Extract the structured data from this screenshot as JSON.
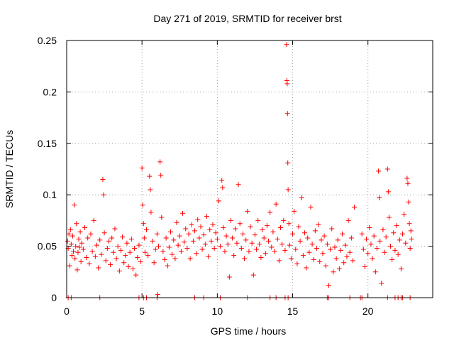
{
  "chart_data": {
    "type": "scatter",
    "title": "Day 271 of 2019, SRMTID for receiver brst",
    "xlabel": "GPS time / hours",
    "ylabel": "SRMTID / TECUs",
    "xlim": [
      0,
      24.3
    ],
    "ylim": [
      0,
      0.25
    ],
    "xticks": [
      0,
      5,
      10,
      15,
      20
    ],
    "xtick_labels": [
      "0",
      "5",
      "10",
      "15",
      "20"
    ],
    "yticks": [
      0,
      0.05,
      0.1,
      0.15,
      0.2,
      0.25
    ],
    "ytick_labels": [
      "0",
      "0.05",
      "0.1",
      "0.15",
      "0.2",
      "0.25"
    ],
    "grid": true,
    "marker": "+",
    "color": "#ff0000",
    "series": [
      {
        "name": "SRMTID",
        "points": [
          [
            0.05,
            0.055
          ],
          [
            0.1,
            0.048
          ],
          [
            0.15,
            0.062
          ],
          [
            0.2,
            0.031
          ],
          [
            0.25,
            0.066
          ],
          [
            0.3,
            0.052
          ],
          [
            0.35,
            0.041
          ],
          [
            0.4,
            0.06
          ],
          [
            0.45,
            0.045
          ],
          [
            0.5,
            0.09
          ],
          [
            0.55,
            0.038
          ],
          [
            0.6,
            0.05
          ],
          [
            0.65,
            0.072
          ],
          [
            0.7,
            0.027
          ],
          [
            0.75,
            0.044
          ],
          [
            0.8,
            0.057
          ],
          [
            0.85,
            0.049
          ],
          [
            0.9,
            0.064
          ],
          [
            0.95,
            0.035
          ],
          [
            1.0,
            0.053
          ],
          [
            1.1,
            0.047
          ],
          [
            1.2,
            0.068
          ],
          [
            1.3,
            0.039
          ],
          [
            1.4,
            0.058
          ],
          [
            1.5,
            0.033
          ],
          [
            1.6,
            0.062
          ],
          [
            1.7,
            0.045
          ],
          [
            1.8,
            0.075
          ],
          [
            1.9,
            0.04
          ],
          [
            2.0,
            0.051
          ],
          [
            2.1,
            0.029
          ],
          [
            2.2,
            0.056
          ],
          [
            2.3,
            0.042
          ],
          [
            2.4,
            0.115
          ],
          [
            2.45,
            0.1
          ],
          [
            2.5,
            0.063
          ],
          [
            2.6,
            0.036
          ],
          [
            2.7,
            0.048
          ],
          [
            2.8,
            0.055
          ],
          [
            2.9,
            0.032
          ],
          [
            3.0,
            0.058
          ],
          [
            3.1,
            0.044
          ],
          [
            3.2,
            0.067
          ],
          [
            3.3,
            0.038
          ],
          [
            3.4,
            0.05
          ],
          [
            3.5,
            0.026
          ],
          [
            3.6,
            0.046
          ],
          [
            3.7,
            0.059
          ],
          [
            3.8,
            0.034
          ],
          [
            3.9,
            0.041
          ],
          [
            4.0,
            0.053
          ],
          [
            4.1,
            0.03
          ],
          [
            4.2,
            0.044
          ],
          [
            4.3,
            0.057
          ],
          [
            4.4,
            0.028
          ],
          [
            4.5,
            0.048
          ],
          [
            4.6,
            0.022
          ],
          [
            4.7,
            0.039
          ],
          [
            4.8,
            0.051
          ],
          [
            4.9,
            0.035
          ],
          [
            5.0,
            0.126
          ],
          [
            5.05,
            0.09
          ],
          [
            5.1,
            0.072
          ],
          [
            5.15,
            0.058
          ],
          [
            5.2,
            0.044
          ],
          [
            5.3,
            0.066
          ],
          [
            5.4,
            0.041
          ],
          [
            5.5,
            0.118
          ],
          [
            5.55,
            0.105
          ],
          [
            5.6,
            0.083
          ],
          [
            5.7,
            0.055
          ],
          [
            5.8,
            0.034
          ],
          [
            5.9,
            0.047
          ],
          [
            6.0,
            0.062
          ],
          [
            6.05,
            0.003
          ],
          [
            6.1,
            0.05
          ],
          [
            6.2,
            0.132
          ],
          [
            6.25,
            0.119
          ],
          [
            6.3,
            0.078
          ],
          [
            6.4,
            0.045
          ],
          [
            6.5,
            0.037
          ],
          [
            6.6,
            0.058
          ],
          [
            6.7,
            0.031
          ],
          [
            6.8,
            0.049
          ],
          [
            6.9,
            0.064
          ],
          [
            7.0,
            0.042
          ],
          [
            7.1,
            0.056
          ],
          [
            7.2,
            0.038
          ],
          [
            7.3,
            0.073
          ],
          [
            7.4,
            0.051
          ],
          [
            7.5,
            0.06
          ],
          [
            7.6,
            0.045
          ],
          [
            7.7,
            0.082
          ],
          [
            7.8,
            0.054
          ],
          [
            7.9,
            0.067
          ],
          [
            8.0,
            0.048
          ],
          [
            8.1,
            0.062
          ],
          [
            8.2,
            0.038
          ],
          [
            8.3,
            0.071
          ],
          [
            8.4,
            0.055
          ],
          [
            8.5,
            0.065
          ],
          [
            8.6,
            0.043
          ],
          [
            8.7,
            0.076
          ],
          [
            8.8,
            0.058
          ],
          [
            8.9,
            0.069
          ],
          [
            9.0,
            0.047
          ],
          [
            9.1,
            0.061
          ],
          [
            9.2,
            0.052
          ],
          [
            9.3,
            0.079
          ],
          [
            9.4,
            0.04
          ],
          [
            9.5,
            0.066
          ],
          [
            9.6,
            0.055
          ],
          [
            9.7,
            0.071
          ],
          [
            9.8,
            0.048
          ],
          [
            9.9,
            0.063
          ],
          [
            10.0,
            0.057
          ],
          [
            10.1,
            0.094
          ],
          [
            10.2,
            0.05
          ],
          [
            10.3,
            0.114
          ],
          [
            10.35,
            0.107
          ],
          [
            10.4,
            0.068
          ],
          [
            10.5,
            0.045
          ],
          [
            10.6,
            0.06
          ],
          [
            10.7,
            0.052
          ],
          [
            10.8,
            0.02
          ],
          [
            10.9,
            0.075
          ],
          [
            11.0,
            0.058
          ],
          [
            11.1,
            0.041
          ],
          [
            11.2,
            0.067
          ],
          [
            11.3,
            0.053
          ],
          [
            11.4,
            0.11
          ],
          [
            11.5,
            0.072
          ],
          [
            11.6,
            0.048
          ],
          [
            11.7,
            0.062
          ],
          [
            11.8,
            0.038
          ],
          [
            11.9,
            0.056
          ],
          [
            12.0,
            0.084
          ],
          [
            12.1,
            0.045
          ],
          [
            12.2,
            0.069
          ],
          [
            12.3,
            0.053
          ],
          [
            12.4,
            0.022
          ],
          [
            12.5,
            0.061
          ],
          [
            12.6,
            0.047
          ],
          [
            12.7,
            0.075
          ],
          [
            12.8,
            0.052
          ],
          [
            12.9,
            0.039
          ],
          [
            13.0,
            0.066
          ],
          [
            13.1,
            0.058
          ],
          [
            13.2,
            0.043
          ],
          [
            13.3,
            0.07
          ],
          [
            13.4,
            0.055
          ],
          [
            13.5,
            0.083
          ],
          [
            13.6,
            0.049
          ],
          [
            13.7,
            0.064
          ],
          [
            13.8,
            0.045
          ],
          [
            13.9,
            0.091
          ],
          [
            14.0,
            0.057
          ],
          [
            14.1,
            0.036
          ],
          [
            14.2,
            0.068
          ],
          [
            14.3,
            0.052
          ],
          [
            14.4,
            0.075
          ],
          [
            14.5,
            0.046
          ],
          [
            14.6,
            0.246
          ],
          [
            14.62,
            0.211
          ],
          [
            14.64,
            0.208
          ],
          [
            14.66,
            0.179
          ],
          [
            14.68,
            0.131
          ],
          [
            14.7,
            0.105
          ],
          [
            14.75,
            0.072
          ],
          [
            14.8,
            0.051
          ],
          [
            14.9,
            0.038
          ],
          [
            15.0,
            0.062
          ],
          [
            15.1,
            0.084
          ],
          [
            15.2,
            0.047
          ],
          [
            15.3,
            0.033
          ],
          [
            15.4,
            0.069
          ],
          [
            15.5,
            0.055
          ],
          [
            15.6,
            0.097
          ],
          [
            15.7,
            0.041
          ],
          [
            15.8,
            0.063
          ],
          [
            15.9,
            0.029
          ],
          [
            16.0,
            0.058
          ],
          [
            16.1,
            0.044
          ],
          [
            16.2,
            0.088
          ],
          [
            16.3,
            0.052
          ],
          [
            16.4,
            0.037
          ],
          [
            16.5,
            0.065
          ],
          [
            16.6,
            0.048
          ],
          [
            16.7,
            0.071
          ],
          [
            16.8,
            0.035
          ],
          [
            16.9,
            0.056
          ],
          [
            17.0,
            0.043
          ],
          [
            17.1,
            0.06
          ],
          [
            17.2,
            0.031
          ],
          [
            17.3,
            0.052
          ],
          [
            17.4,
            0.012
          ],
          [
            17.5,
            0.047
          ],
          [
            17.6,
            0.067
          ],
          [
            17.7,
            0.025
          ],
          [
            17.8,
            0.049
          ],
          [
            17.9,
            0.038
          ],
          [
            18.0,
            0.056
          ],
          [
            18.1,
            0.028
          ],
          [
            18.2,
            0.046
          ],
          [
            18.3,
            0.062
          ],
          [
            18.4,
            0.034
          ],
          [
            18.5,
            0.051
          ],
          [
            18.6,
            0.04
          ],
          [
            18.7,
            0.075
          ],
          [
            18.8,
            0.044
          ],
          [
            18.9,
            0.058
          ],
          [
            19.0,
            0.036
          ],
          [
            19.1,
            0.088
          ],
          [
            19.6,
            0.062
          ],
          [
            19.7,
            0.047
          ],
          [
            19.8,
            0.03
          ],
          [
            19.9,
            0.057
          ],
          [
            20.0,
            0.043
          ],
          [
            20.1,
            0.068
          ],
          [
            20.2,
            0.052
          ],
          [
            20.3,
            0.038
          ],
          [
            20.4,
            0.06
          ],
          [
            20.5,
            0.025
          ],
          [
            20.6,
            0.048
          ],
          [
            20.7,
            0.123
          ],
          [
            20.75,
            0.097
          ],
          [
            20.8,
            0.055
          ],
          [
            20.9,
            0.014
          ],
          [
            21.0,
            0.066
          ],
          [
            21.1,
            0.044
          ],
          [
            21.2,
            0.059
          ],
          [
            21.3,
            0.125
          ],
          [
            21.35,
            0.103
          ],
          [
            21.4,
            0.078
          ],
          [
            21.5,
            0.05
          ],
          [
            21.6,
            0.037
          ],
          [
            21.7,
            0.063
          ],
          [
            21.8,
            0.046
          ],
          [
            21.9,
            0.07
          ],
          [
            22.0,
            0.042
          ],
          [
            22.1,
            0.056
          ],
          [
            22.2,
            0.028
          ],
          [
            22.3,
            0.062
          ],
          [
            22.4,
            0.081
          ],
          [
            22.5,
            0.053
          ],
          [
            22.6,
            0.116
          ],
          [
            22.65,
            0.111
          ],
          [
            22.7,
            0.093
          ],
          [
            22.75,
            0.072
          ],
          [
            22.8,
            0.048
          ],
          [
            22.85,
            0.065
          ],
          [
            22.9,
            0.057
          ],
          [
            0.1,
            0.0
          ],
          [
            0.3,
            0.0
          ],
          [
            2.2,
            0.0
          ],
          [
            4.8,
            0.0
          ],
          [
            5.1,
            0.0
          ],
          [
            5.3,
            0.0
          ],
          [
            6.0,
            0.0
          ],
          [
            8.5,
            0.0
          ],
          [
            9.1,
            0.0
          ],
          [
            10.2,
            0.0
          ],
          [
            12.0,
            0.0
          ],
          [
            13.5,
            0.0
          ],
          [
            13.9,
            0.0
          ],
          [
            14.5,
            0.0
          ],
          [
            14.7,
            0.0
          ],
          [
            17.3,
            0.0
          ],
          [
            17.4,
            0.0
          ],
          [
            18.8,
            0.0
          ],
          [
            19.5,
            0.0
          ],
          [
            19.6,
            0.0
          ],
          [
            21.3,
            0.0
          ],
          [
            21.8,
            0.0
          ],
          [
            22.0,
            0.0
          ],
          [
            22.2,
            0.0
          ],
          [
            22.3,
            0.0
          ],
          [
            22.8,
            0.0
          ]
        ]
      }
    ]
  }
}
